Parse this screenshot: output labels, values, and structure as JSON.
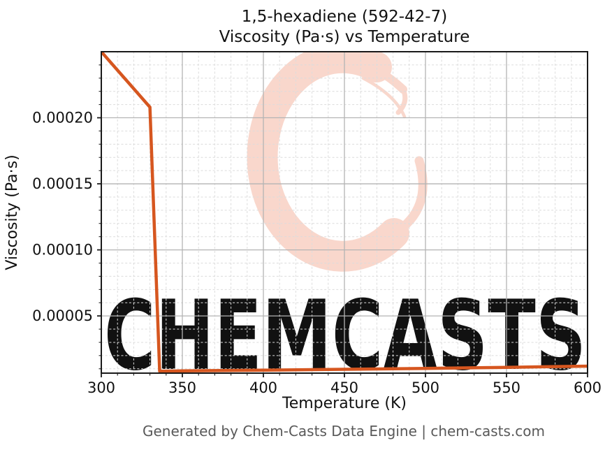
{
  "figure": {
    "title_line1": "1,5-hexadiene (592-42-7)",
    "title_line2": "Viscosity (Pa·s) vs Temperature",
    "footer": "Generated by Chem-Casts Data Engine | chem-casts.com"
  },
  "watermark": {
    "text": "CHEMCASTS",
    "text_color": "#f8cfc3",
    "logo_color": "#f9d7cc"
  },
  "chart_data": {
    "type": "line",
    "title": "1,5-hexadiene (592-42-7) — Viscosity (Pa·s) vs Temperature",
    "xlabel": "Temperature (K)",
    "ylabel": "Viscosity (Pa·s)",
    "xlim": [
      300,
      600
    ],
    "ylim": [
      6.7e-06,
      0.00025
    ],
    "x_ticks": [
      300,
      350,
      400,
      450,
      500,
      550,
      600
    ],
    "x_tick_labels": [
      "300",
      "350",
      "400",
      "450",
      "500",
      "550",
      "600"
    ],
    "x_minor_step": 10,
    "y_ticks": [
      5e-05,
      0.0001,
      0.00015,
      0.0002
    ],
    "y_tick_labels": [
      "0.00005",
      "0.00010",
      "0.00015",
      "0.00020"
    ],
    "y_minor_step": 1e-05,
    "grid": true,
    "legend": "none",
    "line_color": "#d6561f",
    "line_width": 4.5,
    "series": [
      {
        "name": "Viscosity (Pa·s)",
        "points": [
          [
            300,
            0.00025
          ],
          [
            310,
            0.000236
          ],
          [
            320,
            0.000222
          ],
          [
            330,
            0.000208
          ],
          [
            336,
            8.2e-06
          ],
          [
            350,
            8.4e-06
          ],
          [
            400,
            8.9e-06
          ],
          [
            450,
            9.6e-06
          ],
          [
            500,
            1.03e-05
          ],
          [
            550,
            1.11e-05
          ],
          [
            600,
            1.2e-05
          ]
        ]
      }
    ]
  }
}
